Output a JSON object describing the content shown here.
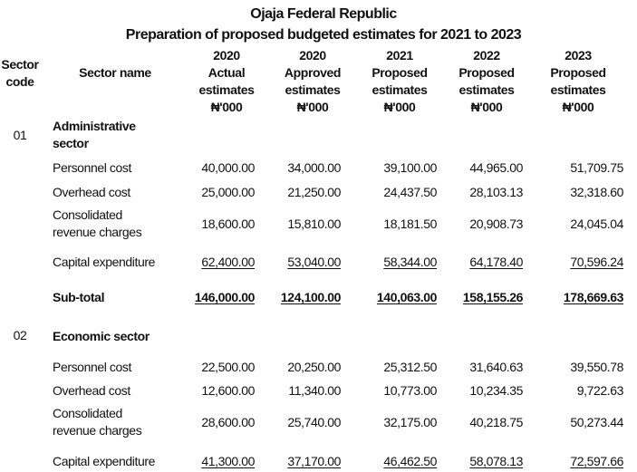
{
  "title": "Ojaja Federal Republic",
  "subtitle": "Preparation of proposed budgeted estimates for 2021 to 2023",
  "headers": {
    "sector_code": [
      "Sector",
      "code"
    ],
    "sector_name": "Sector name",
    "columns": [
      [
        "2020",
        "Actual",
        "estimates",
        "₦'000"
      ],
      [
        "2020",
        "Approved",
        "estimates",
        "₦'000"
      ],
      [
        "2021",
        "Proposed",
        "estimates",
        "₦'000"
      ],
      [
        "2022",
        "Proposed",
        "estimates",
        "₦'000"
      ],
      [
        "2023",
        "Proposed",
        "estimates",
        "₦'000"
      ]
    ]
  },
  "sectors": [
    {
      "code": "01",
      "name": [
        "Administrative",
        "sector"
      ],
      "rows": [
        {
          "label": [
            "Personnel cost"
          ],
          "values": [
            "40,000.00",
            "34,000.00",
            "39,100.00",
            "44,965.00",
            "51,709.75"
          ]
        },
        {
          "label": [
            "Overhead cost"
          ],
          "values": [
            "25,000.00",
            "21,250.00",
            "24,437.50",
            "28,103.13",
            "32,318.60"
          ]
        },
        {
          "label": [
            "Consolidated",
            "revenue charges"
          ],
          "values": [
            "18,600.00",
            "15,810.00",
            "18,181.50",
            "20,908.73",
            "24,045.04"
          ]
        },
        {
          "label": [
            "Capital expenditure"
          ],
          "values": [
            "62,400.00",
            "53,040.00",
            "58,344.00",
            "64,178.40",
            "70,596.24"
          ]
        }
      ],
      "subtotal": {
        "label": "Sub-total",
        "values": [
          "146,000.00",
          "124,100.00",
          "140,063.00",
          "158,155.26",
          "178,669.63"
        ]
      }
    },
    {
      "code": "02",
      "name": [
        "Economic sector"
      ],
      "rows": [
        {
          "label": [
            "Personnel cost"
          ],
          "values": [
            "22,500.00",
            "20,250.00",
            "25,312.50",
            "31,640.63",
            "39,550.78"
          ]
        },
        {
          "label": [
            "Overhead cost"
          ],
          "values": [
            "12,600.00",
            "11,340.00",
            "10,773.00",
            "10,234.35",
            "9,722.63"
          ]
        },
        {
          "label": [
            "Consolidated",
            "revenue charges"
          ],
          "values": [
            "28,600.00",
            "25,740.00",
            "32,175.00",
            "40,218.75",
            "50,273.44"
          ]
        },
        {
          "label": [
            "Capital expenditure"
          ],
          "values": [
            "41,300.00",
            "37,170.00",
            "46,462.50",
            "58,078.13",
            "72,597.66"
          ]
        }
      ]
    }
  ]
}
